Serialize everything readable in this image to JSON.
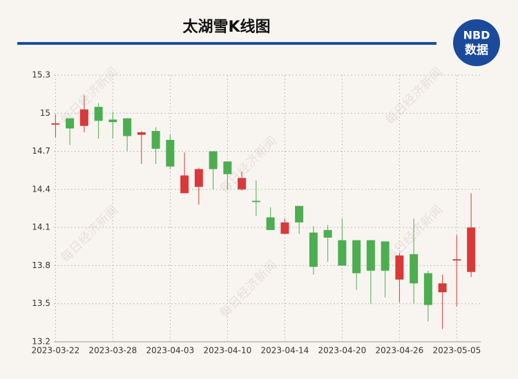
{
  "chart_data": {
    "type": "candlestick",
    "title": "太湖雪K线图",
    "logo": {
      "top": "NBD",
      "bottom": "数据"
    },
    "watermark": "每日经济新闻",
    "categories": [
      "2023-03-22",
      null,
      null,
      null,
      "2023-03-28",
      null,
      null,
      null,
      "2023-04-03",
      null,
      null,
      null,
      "2023-04-10",
      null,
      null,
      null,
      "2023-04-14",
      null,
      null,
      null,
      "2023-04-20",
      null,
      null,
      null,
      "2023-04-26",
      null,
      null,
      null,
      "2023-05-05",
      null
    ],
    "open": [
      14.91,
      14.96,
      14.9,
      15.05,
      14.95,
      14.96,
      14.83,
      14.86,
      14.79,
      14.37,
      14.42,
      14.7,
      14.62,
      14.4,
      14.31,
      14.18,
      14.05,
      14.27,
      14.06,
      14.08,
      14.0,
      14.0,
      14.0,
      13.99,
      13.69,
      13.89,
      13.74,
      13.59,
      13.84,
      13.75
    ],
    "high": [
      14.99,
      14.96,
      15.14,
      15.08,
      15.01,
      14.96,
      14.86,
      14.89,
      14.83,
      14.69,
      14.57,
      14.7,
      14.62,
      14.54,
      14.47,
      14.26,
      14.17,
      14.27,
      14.11,
      14.12,
      14.17,
      14.0,
      14.0,
      13.99,
      13.9,
      14.17,
      13.76,
      13.73,
      14.04,
      14.37
    ],
    "low": [
      14.81,
      14.75,
      14.85,
      14.8,
      14.8,
      14.7,
      14.6,
      14.6,
      14.56,
      14.37,
      14.28,
      14.4,
      14.4,
      14.39,
      14.19,
      14.08,
      14.05,
      14.05,
      13.73,
      13.83,
      13.8,
      13.61,
      13.5,
      13.55,
      13.51,
      13.5,
      13.36,
      13.3,
      13.48,
      13.71
    ],
    "close": [
      14.92,
      14.88,
      15.03,
      14.94,
      14.93,
      14.82,
      14.85,
      14.72,
      14.58,
      14.51,
      14.56,
      14.56,
      14.52,
      14.49,
      14.3,
      14.08,
      14.14,
      14.14,
      13.79,
      14.02,
      13.8,
      13.74,
      13.76,
      13.76,
      13.88,
      13.66,
      13.49,
      13.66,
      13.85,
      14.1
    ],
    "up_color": "#d9393a",
    "down_color": "#4cae50",
    "ylim": [
      13.2,
      15.3
    ],
    "yticks": [
      13.2,
      13.5,
      13.8,
      14.1,
      14.4,
      14.7,
      15,
      15.3
    ],
    "grid": true
  }
}
